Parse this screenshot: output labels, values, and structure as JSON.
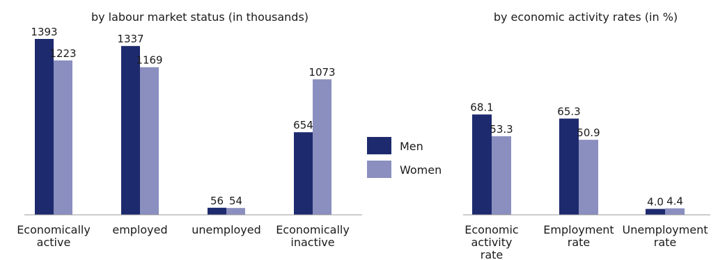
{
  "colors": {
    "men": "#1e2a6e",
    "women": "#8a8fbf",
    "axis": "#9a9a9a"
  },
  "legend": {
    "men": "Men",
    "women": "Women"
  },
  "chart_data": [
    {
      "type": "bar",
      "title": "by labour market status  (in thousands)",
      "categories": [
        [
          "Economically",
          "active"
        ],
        [
          "employed"
        ],
        [
          "unemployed"
        ],
        [
          "Economically",
          "inactive"
        ]
      ],
      "series": [
        {
          "name": "Men",
          "values": [
            1393,
            1337,
            56,
            654
          ],
          "labels": [
            "1393",
            "1337",
            "56",
            "654"
          ]
        },
        {
          "name": "Women",
          "values": [
            1223,
            1169,
            54,
            1073
          ],
          "labels": [
            "1223",
            "1169",
            "54",
            "1073"
          ]
        }
      ],
      "ylim": [
        0,
        1393
      ],
      "grid": false
    },
    {
      "type": "bar",
      "title": "by economic activity rates (in %)",
      "categories": [
        [
          "Economic",
          "activity",
          "rate"
        ],
        [
          "Employment",
          "rate"
        ],
        [
          "Unemployment",
          "rate"
        ]
      ],
      "series": [
        {
          "name": "Men",
          "values": [
            68.1,
            65.3,
            4.0
          ],
          "labels": [
            "68.1",
            "65.3",
            "4.0"
          ]
        },
        {
          "name": "Women",
          "values": [
            53.3,
            50.9,
            4.4
          ],
          "labels": [
            "53.3",
            "50.9",
            "4.4"
          ]
        }
      ],
      "ylim": [
        0,
        100
      ],
      "grid": false
    }
  ]
}
